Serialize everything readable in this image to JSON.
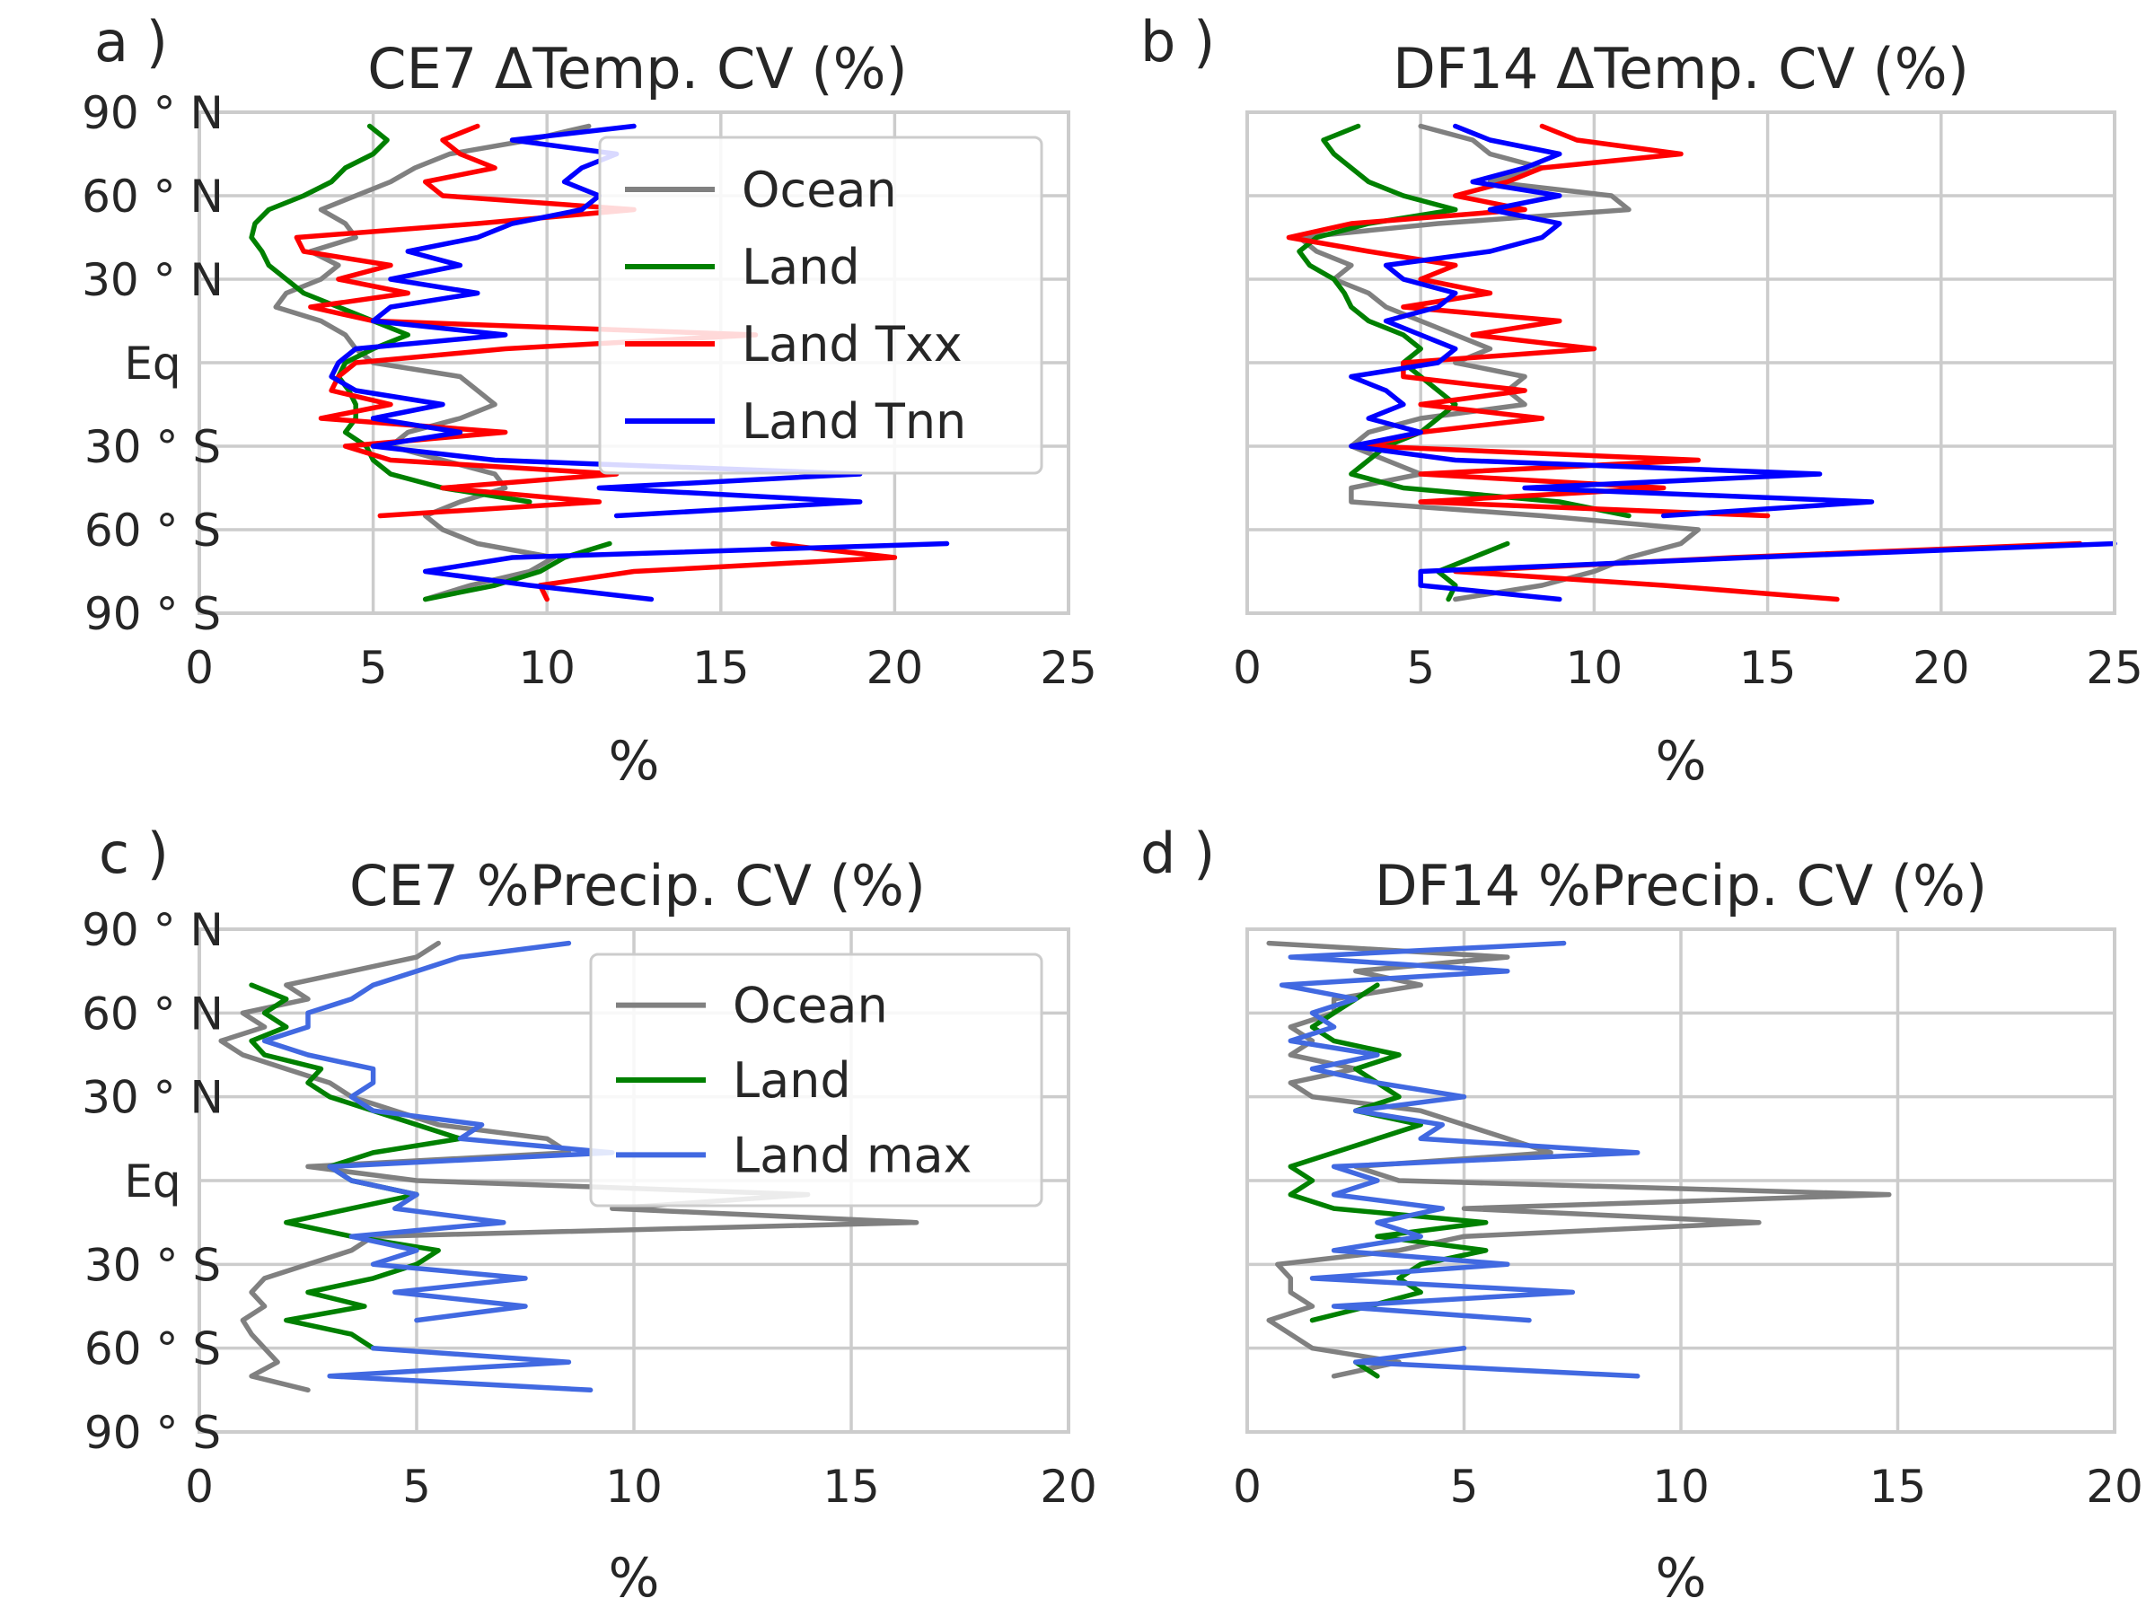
{
  "chart_data": [
    {
      "panel_label": "a )",
      "type": "line",
      "title": "CE7 ΔTemp. CV (%)",
      "xlabel": "%",
      "xlim": [
        0,
        25
      ],
      "xticks": [
        "0",
        "5",
        "10",
        "15",
        "20",
        "25"
      ],
      "ylim": [
        -90,
        90
      ],
      "yticks": [
        "90 ° N",
        "60 ° N",
        "30 ° N",
        "Eq",
        "30 ° S",
        "60 ° S",
        "90 ° S"
      ],
      "show_y_ticks": true,
      "legend": "top-right",
      "grid": true,
      "series": [
        {
          "name": "Ocean",
          "color": "#808080",
          "lat": [
            -85,
            -80,
            -75,
            -70,
            -65,
            -60,
            -55,
            -50,
            -45,
            -40,
            -35,
            -30,
            -25,
            -20,
            -15,
            -10,
            -5,
            0,
            5,
            10,
            15,
            20,
            25,
            30,
            35,
            40,
            45,
            50,
            55,
            60,
            65,
            70,
            75,
            80,
            85
          ],
          "values": [
            6.5,
            7.8,
            9.5,
            10.2,
            8.0,
            7.0,
            6.5,
            7.5,
            8.8,
            8.5,
            7.0,
            5.5,
            6.0,
            7.5,
            8.5,
            8.0,
            7.5,
            5.0,
            4.5,
            4.2,
            3.5,
            2.2,
            2.5,
            3.5,
            4.0,
            3.2,
            4.5,
            4.2,
            3.5,
            4.5,
            5.5,
            6.2,
            7.2,
            9.5,
            11.2
          ]
        },
        {
          "name": "Land",
          "color": "#008000",
          "lat": [
            -85,
            -80,
            -75,
            -70,
            -65,
            -60,
            -55,
            -50,
            -45,
            -40,
            -35,
            -30,
            -25,
            -20,
            -15,
            -10,
            -5,
            0,
            5,
            10,
            15,
            20,
            25,
            30,
            35,
            40,
            45,
            50,
            55,
            60,
            65,
            70,
            75,
            80,
            85
          ],
          "values": [
            6.5,
            8.5,
            9.8,
            10.5,
            11.8,
            null,
            null,
            9.5,
            7.0,
            5.5,
            5.0,
            4.8,
            4.2,
            4.5,
            4.5,
            4.3,
            4.0,
            4.2,
            5.0,
            6.0,
            5.0,
            4.0,
            3.0,
            2.5,
            2.0,
            1.8,
            1.5,
            1.6,
            2.0,
            3.0,
            3.8,
            4.2,
            5.0,
            5.4,
            4.9
          ]
        },
        {
          "name": "Land Txx",
          "color": "#ff0000",
          "lat": [
            -85,
            -80,
            -75,
            -70,
            -65,
            -60,
            -55,
            -50,
            -45,
            -40,
            -35,
            -30,
            -25,
            -20,
            -15,
            -10,
            -5,
            0,
            5,
            10,
            15,
            20,
            25,
            30,
            35,
            40,
            45,
            50,
            55,
            60,
            65,
            70,
            75,
            80,
            85
          ],
          "values": [
            10.0,
            9.8,
            12.5,
            20.0,
            16.5,
            null,
            5.2,
            11.5,
            7.0,
            12.0,
            5.5,
            4.2,
            8.8,
            3.5,
            5.5,
            3.8,
            4.0,
            4.5,
            8.8,
            16.0,
            5.0,
            3.2,
            6.0,
            4.0,
            5.5,
            3.0,
            2.8,
            8.0,
            12.5,
            7.0,
            6.5,
            8.5,
            7.5,
            7.0,
            8.0
          ]
        },
        {
          "name": "Land Tnn",
          "color": "#0000ff",
          "lat": [
            -85,
            -80,
            -75,
            -70,
            -65,
            -60,
            -55,
            -50,
            -45,
            -40,
            -35,
            -30,
            -25,
            -20,
            -15,
            -10,
            -5,
            0,
            5,
            10,
            15,
            20,
            25,
            30,
            35,
            40,
            45,
            50,
            55,
            60,
            65,
            70,
            75,
            80,
            85
          ],
          "values": [
            13.0,
            9.5,
            6.5,
            9.0,
            21.5,
            null,
            12.0,
            19.0,
            11.5,
            19.0,
            8.5,
            5.0,
            7.5,
            5.0,
            7.0,
            4.5,
            3.8,
            4.0,
            4.5,
            8.8,
            5.0,
            5.5,
            8.0,
            5.5,
            7.5,
            6.0,
            8.0,
            9.0,
            11.0,
            11.5,
            10.5,
            11.0,
            12.0,
            9.0,
            12.5
          ]
        }
      ]
    },
    {
      "panel_label": "b )",
      "type": "line",
      "title": "DF14 ΔTemp. CV (%)",
      "xlabel": "%",
      "xlim": [
        0,
        25
      ],
      "xticks": [
        "0",
        "5",
        "10",
        "15",
        "20",
        "25"
      ],
      "ylim": [
        -90,
        90
      ],
      "yticks": [],
      "show_y_ticks": false,
      "grid": true,
      "series": [
        {
          "name": "Ocean",
          "color": "#808080",
          "lat": [
            -85,
            -80,
            -75,
            -70,
            -65,
            -60,
            -55,
            -50,
            -45,
            -40,
            -35,
            -30,
            -25,
            -20,
            -15,
            -10,
            -5,
            0,
            5,
            10,
            15,
            20,
            25,
            30,
            35,
            40,
            45,
            50,
            55,
            60,
            65,
            70,
            75,
            80,
            85
          ],
          "values": [
            6.0,
            8.5,
            10.0,
            11.0,
            12.5,
            13.0,
            8.5,
            3.0,
            3.0,
            5.0,
            4.0,
            3.0,
            3.5,
            5.0,
            8.0,
            7.5,
            8.0,
            6.0,
            7.0,
            6.0,
            5.0,
            4.0,
            3.5,
            2.5,
            3.0,
            2.0,
            1.5,
            5.5,
            11.0,
            10.5,
            7.0,
            8.5,
            7.0,
            6.5,
            5.0
          ]
        },
        {
          "name": "Land",
          "color": "#008000",
          "lat": [
            -85,
            -80,
            -75,
            -70,
            -65,
            -60,
            -55,
            -50,
            -45,
            -40,
            -35,
            -30,
            -25,
            -20,
            -15,
            -10,
            -5,
            0,
            5,
            10,
            15,
            20,
            25,
            30,
            35,
            40,
            45,
            50,
            55,
            60,
            65,
            70,
            75,
            80,
            85
          ],
          "values": [
            5.8,
            6.0,
            5.5,
            6.5,
            7.5,
            null,
            11.0,
            9.0,
            4.5,
            3.0,
            3.5,
            4.0,
            5.0,
            5.5,
            6.0,
            5.5,
            5.0,
            4.5,
            5.0,
            4.5,
            3.5,
            3.0,
            2.8,
            2.5,
            1.8,
            1.5,
            2.0,
            3.5,
            6.0,
            4.5,
            3.5,
            3.0,
            2.5,
            2.2,
            3.2
          ]
        },
        {
          "name": "Land Txx",
          "color": "#ff0000",
          "lat": [
            -85,
            -80,
            -75,
            -70,
            -65,
            -60,
            -55,
            -50,
            -45,
            -40,
            -35,
            -30,
            -25,
            -20,
            -15,
            -10,
            -5,
            0,
            5,
            10,
            15,
            20,
            25,
            30,
            35,
            40,
            45,
            50,
            55,
            60,
            65,
            70,
            75,
            80,
            85
          ],
          "values": [
            17.0,
            12.0,
            6.0,
            14.0,
            24.0,
            null,
            15.0,
            5.0,
            12.0,
            5.0,
            13.0,
            3.5,
            5.0,
            8.5,
            5.0,
            8.0,
            4.5,
            4.5,
            10.0,
            6.5,
            9.0,
            4.5,
            7.0,
            5.0,
            6.0,
            3.5,
            1.2,
            3.0,
            8.0,
            6.0,
            7.5,
            8.5,
            12.5,
            9.5,
            8.5
          ]
        },
        {
          "name": "Land Tnn",
          "color": "#0000ff",
          "lat": [
            -85,
            -80,
            -75,
            -70,
            -65,
            -60,
            -55,
            -50,
            -45,
            -40,
            -35,
            -30,
            -25,
            -20,
            -15,
            -10,
            -5,
            0,
            5,
            10,
            15,
            20,
            25,
            30,
            35,
            40,
            45,
            50,
            55,
            60,
            65,
            70,
            75,
            80,
            85
          ],
          "values": [
            9.0,
            5.0,
            5.0,
            14.5,
            25.0,
            null,
            12.0,
            18.0,
            8.0,
            16.5,
            6.0,
            3.0,
            5.0,
            3.5,
            4.5,
            4.0,
            3.0,
            5.5,
            6.0,
            5.0,
            4.0,
            5.5,
            6.0,
            4.5,
            4.0,
            7.0,
            8.5,
            9.0,
            7.0,
            9.0,
            6.5,
            8.0,
            9.0,
            7.0,
            6.0
          ]
        }
      ]
    },
    {
      "panel_label": "c )",
      "type": "line",
      "title": "CE7 %Precip.   CV (%)",
      "xlabel": "%",
      "xlim": [
        0,
        20
      ],
      "xticks": [
        "0",
        "5",
        "10",
        "15",
        "20"
      ],
      "ylim": [
        -90,
        90
      ],
      "yticks": [
        "90 ° N",
        "60 ° N",
        "30 ° N",
        "Eq",
        "30 ° S",
        "60 ° S",
        "90 ° S"
      ],
      "show_y_ticks": true,
      "legend": "top-right",
      "grid": true,
      "series": [
        {
          "name": "Ocean",
          "color": "#808080",
          "lat": [
            -75,
            -70,
            -65,
            -60,
            -55,
            -50,
            -45,
            -40,
            -35,
            -30,
            -25,
            -20,
            -15,
            -10,
            -5,
            0,
            5,
            10,
            15,
            20,
            25,
            30,
            35,
            40,
            45,
            50,
            55,
            60,
            65,
            70,
            75,
            80,
            85
          ],
          "values": [
            2.5,
            1.2,
            1.8,
            1.5,
            1.2,
            1.0,
            1.5,
            1.2,
            1.5,
            2.5,
            3.5,
            4.0,
            16.5,
            9.5,
            14.0,
            5.0,
            2.5,
            8.5,
            8.0,
            5.5,
            4.5,
            3.5,
            3.0,
            2.0,
            1.0,
            0.5,
            1.5,
            1.0,
            2.5,
            2.0,
            3.5,
            5.0,
            5.5
          ]
        },
        {
          "name": "Land",
          "color": "#008000",
          "lat": [
            -75,
            -70,
            -65,
            -60,
            -55,
            -50,
            -45,
            -40,
            -35,
            -30,
            -25,
            -20,
            -15,
            -10,
            -5,
            0,
            5,
            10,
            15,
            20,
            25,
            30,
            35,
            40,
            45,
            50,
            55,
            60,
            65,
            70,
            75,
            80,
            85
          ],
          "values": [
            null,
            null,
            null,
            4.0,
            3.5,
            2.0,
            3.8,
            2.5,
            4.0,
            5.0,
            5.5,
            3.5,
            2.0,
            3.5,
            5.0,
            3.5,
            3.0,
            4.0,
            6.0,
            5.0,
            4.0,
            3.0,
            2.5,
            2.8,
            1.5,
            1.2,
            2.0,
            1.5,
            2.0,
            1.2,
            null,
            null,
            null
          ]
        },
        {
          "name": "Land max",
          "color": "#4169e1",
          "lat": [
            -75,
            -70,
            -65,
            -60,
            -55,
            -50,
            -45,
            -40,
            -35,
            -30,
            -25,
            -20,
            -15,
            -10,
            -5,
            0,
            5,
            10,
            15,
            20,
            25,
            30,
            35,
            40,
            45,
            50,
            55,
            60,
            65,
            70,
            75,
            80,
            85
          ],
          "values": [
            9.0,
            3.0,
            8.5,
            4.0,
            null,
            5.0,
            7.5,
            4.5,
            7.5,
            4.0,
            5.0,
            3.5,
            7.0,
            4.5,
            5.0,
            3.5,
            3.0,
            9.5,
            6.0,
            6.5,
            4.0,
            3.5,
            4.0,
            4.0,
            2.5,
            1.5,
            2.5,
            2.5,
            3.5,
            4.0,
            5.0,
            6.0,
            8.5
          ]
        }
      ]
    },
    {
      "panel_label": "d )",
      "type": "line",
      "title": "DF14 %Precip. CV (%)",
      "xlabel": "%",
      "xlim": [
        0,
        20
      ],
      "xticks": [
        "0",
        "5",
        "10",
        "15",
        "20"
      ],
      "ylim": [
        -90,
        90
      ],
      "yticks": [],
      "show_y_ticks": false,
      "grid": true,
      "series": [
        {
          "name": "Ocean",
          "color": "#808080",
          "lat": [
            -70,
            -65,
            -60,
            -55,
            -50,
            -45,
            -40,
            -35,
            -30,
            -25,
            -20,
            -15,
            -10,
            -5,
            0,
            5,
            10,
            15,
            20,
            25,
            30,
            35,
            40,
            45,
            50,
            55,
            60,
            65,
            70,
            75,
            80,
            85
          ],
          "values": [
            2.0,
            3.5,
            1.5,
            1.0,
            0.5,
            1.5,
            1.0,
            1.0,
            0.7,
            3.5,
            5.0,
            11.8,
            5.0,
            14.8,
            3.5,
            2.5,
            7.0,
            6.0,
            5.0,
            4.0,
            1.5,
            1.0,
            2.5,
            1.0,
            1.5,
            1.0,
            2.0,
            2.0,
            4.0,
            2.5,
            6.0,
            0.5
          ]
        },
        {
          "name": "Land",
          "color": "#008000",
          "lat": [
            -70,
            -65,
            -60,
            -55,
            -50,
            -45,
            -40,
            -35,
            -30,
            -25,
            -20,
            -15,
            -10,
            -5,
            0,
            5,
            10,
            15,
            20,
            25,
            30,
            35,
            40,
            45,
            50,
            55,
            60,
            65,
            70,
            75,
            80,
            85
          ],
          "values": [
            3.0,
            2.5,
            null,
            null,
            1.5,
            2.8,
            4.0,
            3.5,
            4.0,
            5.5,
            3.0,
            5.5,
            2.0,
            1.0,
            1.5,
            1.0,
            2.0,
            3.0,
            4.0,
            2.5,
            3.5,
            3.0,
            2.5,
            3.5,
            2.0,
            1.5,
            2.0,
            2.5,
            3.0,
            null,
            null,
            null
          ]
        },
        {
          "name": "Land max",
          "color": "#4169e1",
          "lat": [
            -70,
            -65,
            -60,
            -55,
            -50,
            -45,
            -40,
            -35,
            -30,
            -25,
            -20,
            -15,
            -10,
            -5,
            0,
            5,
            10,
            15,
            20,
            25,
            30,
            35,
            40,
            45,
            50,
            55,
            60,
            65,
            70,
            75,
            80,
            85
          ],
          "values": [
            9.0,
            2.5,
            5.0,
            null,
            6.5,
            2.0,
            7.5,
            1.5,
            6.0,
            2.0,
            4.0,
            3.0,
            4.5,
            2.0,
            3.0,
            2.0,
            9.0,
            4.0,
            4.5,
            2.5,
            5.0,
            3.0,
            1.5,
            3.0,
            1.0,
            2.0,
            1.5,
            2.5,
            0.8,
            6.0,
            1.0,
            7.3
          ]
        }
      ]
    }
  ]
}
